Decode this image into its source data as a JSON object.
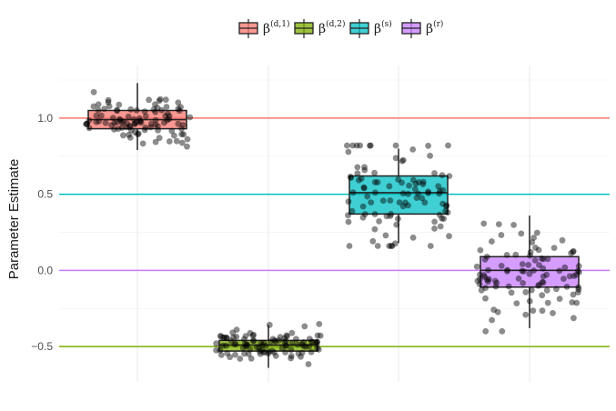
{
  "chart_data": {
    "type": "box",
    "ylabel": "Parameter Estimate",
    "xlabel": "",
    "ylim": [
      -0.72,
      1.28
    ],
    "yticks": [
      -0.5,
      0.0,
      0.5,
      1.0
    ],
    "ytick_labels": [
      "−0.5",
      "0.0",
      "0.5",
      "1.0"
    ],
    "legend_position": "top",
    "grid": true,
    "series": [
      {
        "name": "β(d,1)",
        "base": "β",
        "sup": "(d,1)",
        "color": "#F8766D",
        "true_value": 1.0,
        "box": {
          "q1": 0.93,
          "median": 0.99,
          "q3": 1.05,
          "whisker_low": 0.79,
          "whisker_high": 1.23
        }
      },
      {
        "name": "β(d,2)",
        "base": "β",
        "sup": "(d,2)",
        "color": "#7CAE00",
        "true_value": -0.5,
        "box": {
          "q1": -0.53,
          "median": -0.49,
          "q3": -0.46,
          "whisker_low": -0.64,
          "whisker_high": -0.36
        }
      },
      {
        "name": "β(s)",
        "base": "β",
        "sup": "(s)",
        "color": "#00BFC4",
        "true_value": 0.5,
        "box": {
          "q1": 0.37,
          "median": 0.51,
          "q3": 0.62,
          "whisker_low": 0.18,
          "whisker_high": 0.8
        }
      },
      {
        "name": "β(r)",
        "base": "β",
        "sup": "(r)",
        "color": "#C77CFF",
        "true_value": 0.0,
        "box": {
          "q1": -0.11,
          "median": 0.0,
          "q3": 0.09,
          "whisker_low": -0.38,
          "whisker_high": 0.36
        }
      }
    ]
  }
}
